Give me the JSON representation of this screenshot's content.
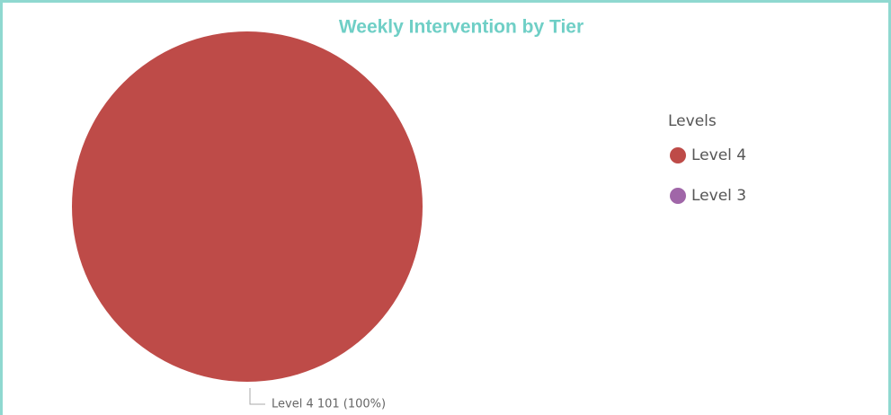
{
  "chart_data": {
    "type": "pie",
    "title": "Weekly Intervention by Tier",
    "legend_title": "Levels",
    "categories": [
      "Level 4",
      "Level 3"
    ],
    "values": [
      101,
      0
    ],
    "value_labels": [
      "Level 4 101 (100%)",
      null
    ],
    "colors": [
      "#be4b48",
      "#a066a8"
    ],
    "legend": "right"
  }
}
